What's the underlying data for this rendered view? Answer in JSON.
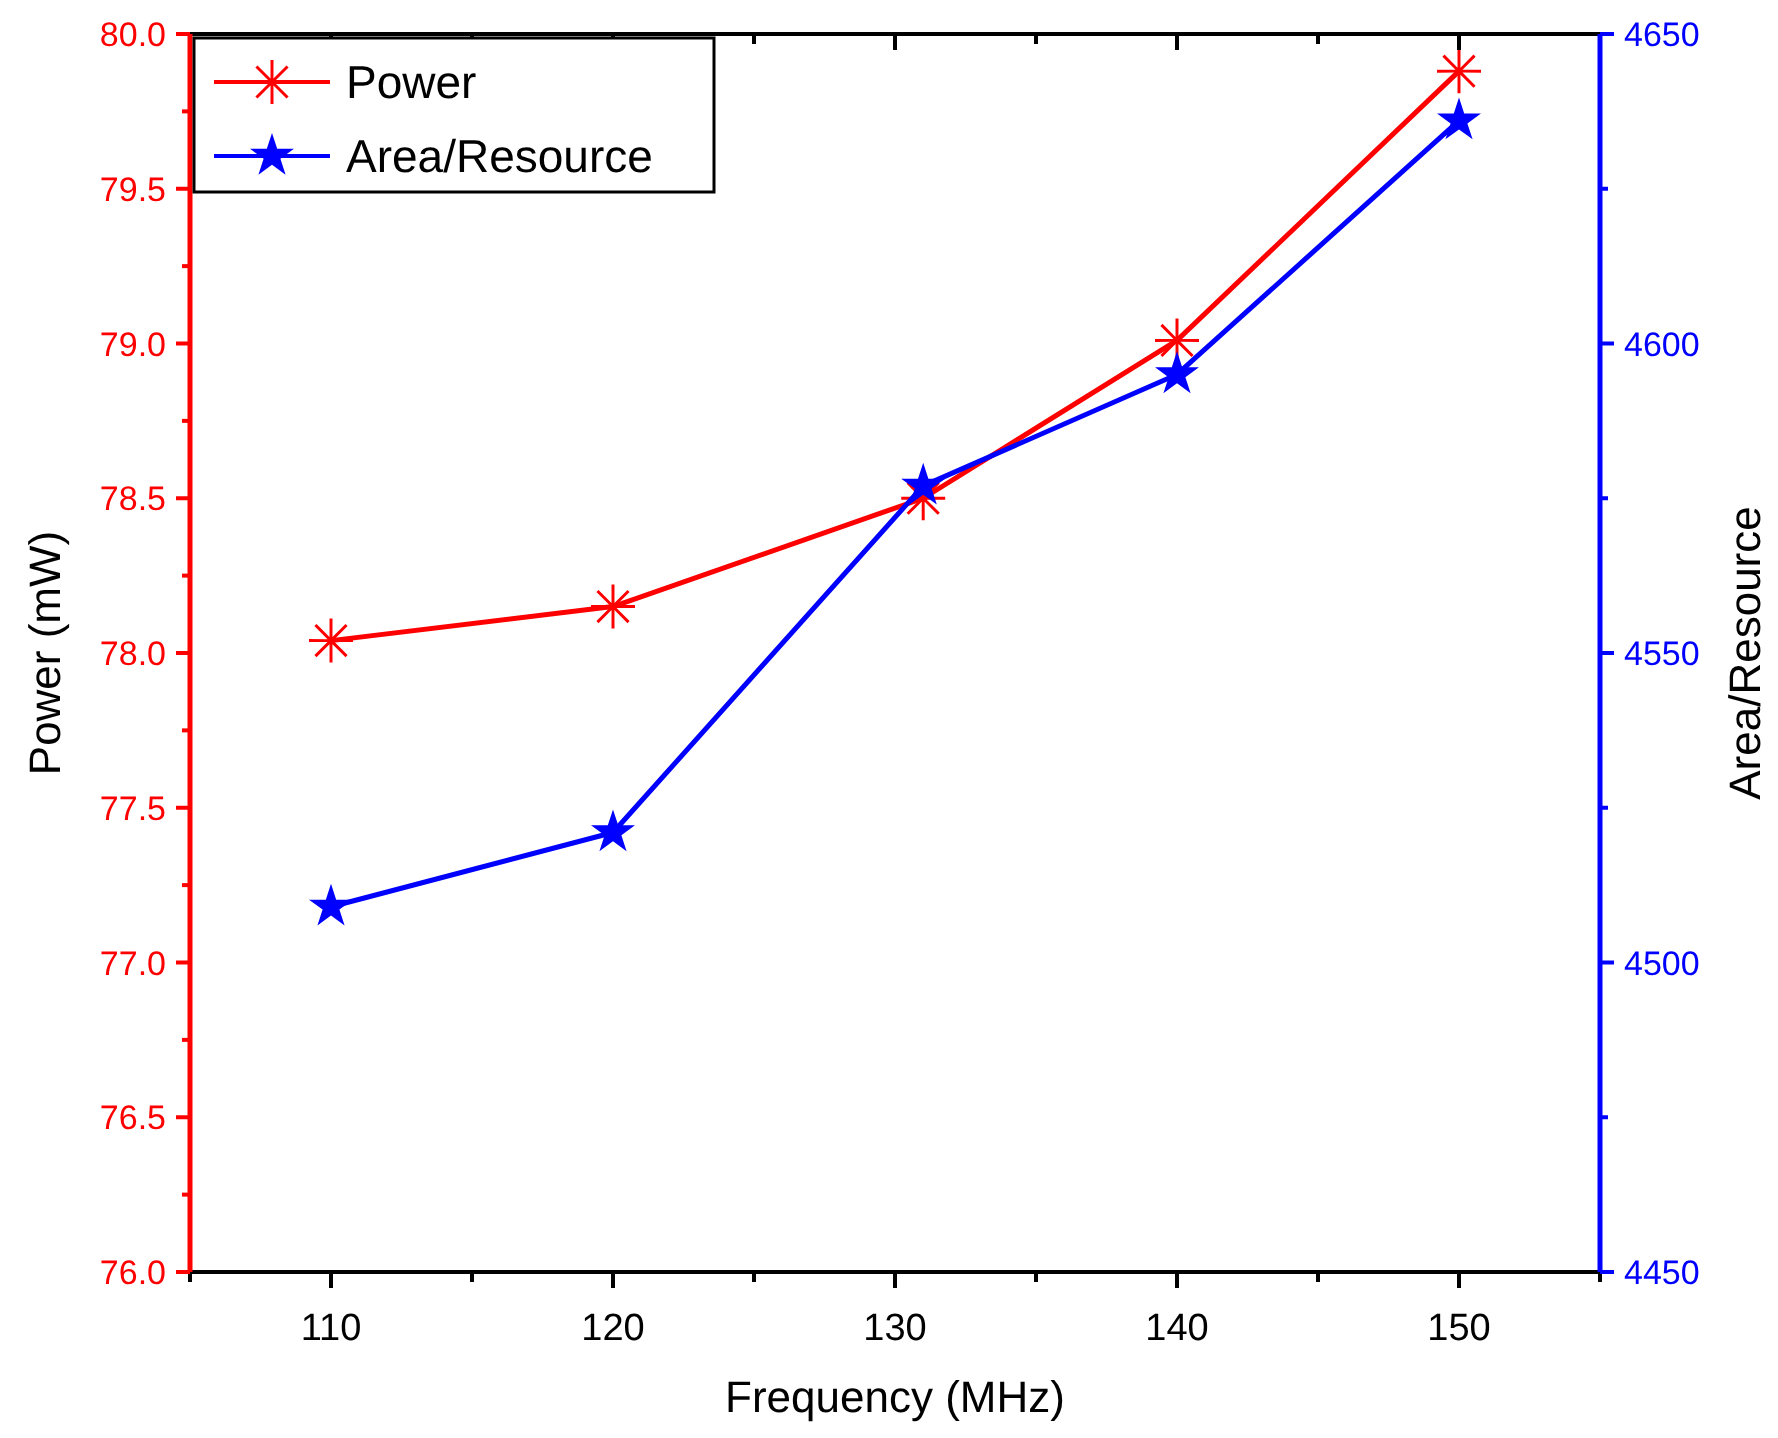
{
  "chart_data": {
    "type": "line",
    "xlabel": "Frequency (MHz)",
    "ylabel": "Power (mW)",
    "y2label": "Area/Resource",
    "x": [
      110,
      120,
      131,
      140,
      150
    ],
    "xlim": [
      105,
      155
    ],
    "xticks": [
      110,
      120,
      130,
      140,
      150
    ],
    "ylim": [
      76,
      80
    ],
    "yticks": [
      {
        "value": 76,
        "label": "76.0"
      },
      {
        "value": 76.5,
        "label": "76.5"
      },
      {
        "value": 77,
        "label": "77.0"
      },
      {
        "value": 77.5,
        "label": "77.5"
      },
      {
        "value": 78,
        "label": "78.0"
      },
      {
        "value": 78.5,
        "label": "78.5"
      },
      {
        "value": 79,
        "label": "79.0"
      },
      {
        "value": 79.5,
        "label": "79.5"
      },
      {
        "value": 80,
        "label": "80.0"
      }
    ],
    "y2lim": [
      4450,
      4650
    ],
    "y2ticks": [
      4450,
      4500,
      4550,
      4600,
      4650
    ],
    "legend": "top left",
    "grid": false,
    "line_style": "solid",
    "series": [
      {
        "name": "Power",
        "color": "#ff0000",
        "marker": "cross",
        "values": [
          78.04,
          78.15,
          78.5,
          79.01,
          79.88
        ]
      },
      {
        "name": "Area/Resource",
        "color": "#0000ff",
        "marker": "star",
        "axis": "y2",
        "values": [
          4509,
          4521,
          4577,
          4595,
          4636
        ]
      }
    ]
  }
}
